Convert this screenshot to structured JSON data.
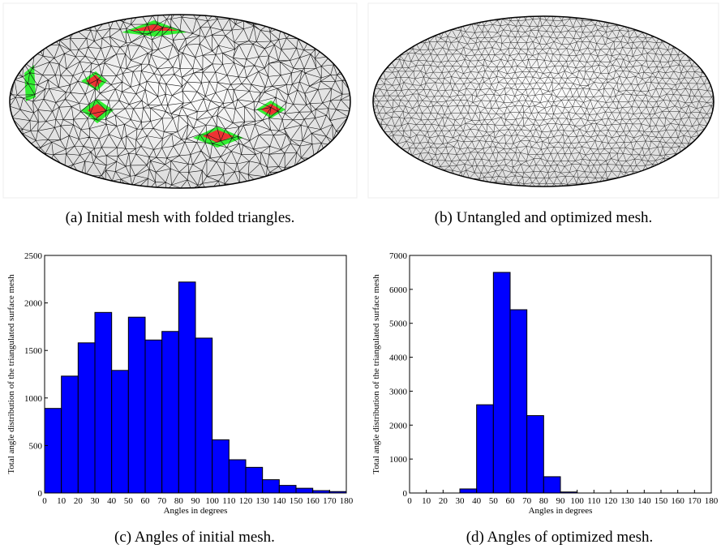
{
  "captions": [
    "(a) Initial mesh with folded triangles.",
    "(b) Untangled and optimized mesh.",
    "(c) Angles of initial mesh.",
    "(d) Angles of optimized mesh."
  ],
  "chart_data": [
    {
      "type": "histogram",
      "xlabel": "Angles in degrees",
      "ylabel": "Total angle distribution of the triangulated surface mesh",
      "bins": [
        0,
        10,
        20,
        30,
        40,
        50,
        60,
        70,
        80,
        90,
        100,
        110,
        120,
        130,
        140,
        150,
        160,
        170,
        180
      ],
      "values": [
        890,
        1230,
        1580,
        1900,
        1290,
        1850,
        1610,
        1700,
        2220,
        1630,
        560,
        350,
        270,
        140,
        80,
        50,
        25,
        15
      ],
      "color": "#0000ff",
      "xlim": [
        0,
        180
      ],
      "ylim": [
        0,
        2500
      ],
      "xticks": [
        0,
        10,
        20,
        30,
        40,
        50,
        60,
        70,
        80,
        90,
        100,
        110,
        120,
        130,
        140,
        150,
        160,
        170,
        180
      ],
      "yticks": [
        0,
        500,
        1000,
        1500,
        2000,
        2500
      ]
    },
    {
      "type": "histogram",
      "xlabel": "Angles in degrees",
      "ylabel": "Total angle distribution of the triangulated surface mesh",
      "bins": [
        0,
        10,
        20,
        30,
        40,
        50,
        60,
        70,
        80,
        90,
        100,
        110,
        120,
        130,
        140,
        150,
        160,
        170,
        180
      ],
      "values": [
        0,
        0,
        0,
        120,
        2600,
        6500,
        5400,
        2280,
        480,
        30,
        0,
        0,
        0,
        0,
        0,
        0,
        0,
        0
      ],
      "color": "#0000ff",
      "xlim": [
        0,
        180
      ],
      "ylim": [
        0,
        7000
      ],
      "xticks": [
        0,
        10,
        20,
        30,
        40,
        50,
        60,
        70,
        80,
        90,
        100,
        110,
        120,
        130,
        140,
        150,
        160,
        170,
        180
      ],
      "yticks": [
        0,
        1000,
        2000,
        3000,
        4000,
        5000,
        6000,
        7000
      ]
    }
  ]
}
